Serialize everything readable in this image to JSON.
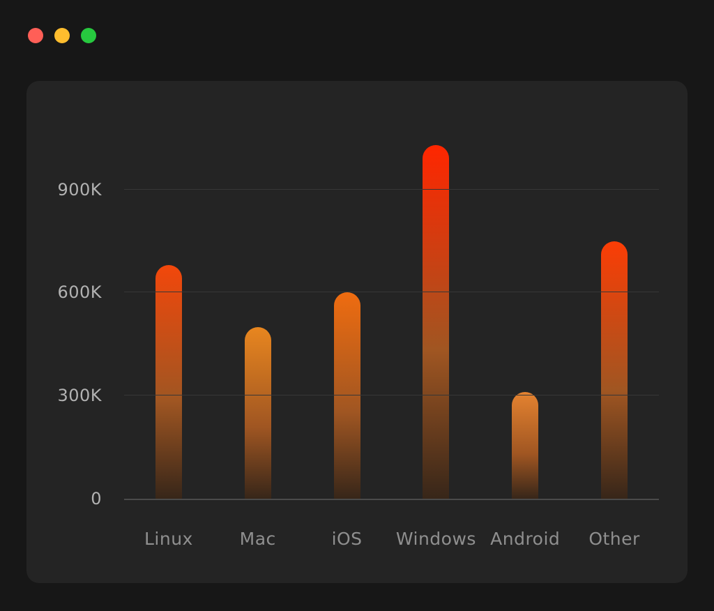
{
  "window": {
    "traffic_lights": [
      {
        "name": "close-button",
        "color": "#ff5f57"
      },
      {
        "name": "minimize-button",
        "color": "#ffbd2e"
      },
      {
        "name": "zoom-button",
        "color": "#27c93f"
      }
    ]
  },
  "chart_data": {
    "type": "bar",
    "title": "",
    "xlabel": "",
    "ylabel": "",
    "categories": [
      "Linux",
      "Mac",
      "iOS",
      "Windows",
      "Android",
      "Other"
    ],
    "values": [
      680000,
      500000,
      600000,
      1030000,
      310000,
      750000
    ],
    "ylim": [
      0,
      1080000
    ],
    "yticks": [
      0,
      300000,
      600000,
      900000
    ],
    "ytick_labels": [
      "0",
      "300K",
      "600K",
      "900K"
    ],
    "grid": true,
    "legend": "none",
    "colors": {
      "bar_top_by_category": [
        "#f2470b",
        "#e8861f",
        "#ef6c10",
        "#ff2600",
        "#e58330",
        "#fb3d05"
      ],
      "bar_mid": "#a05622",
      "bar_bottom": "#372619",
      "gridline": "#373737",
      "axis_line": "#4b4b4b",
      "y_label": "#b2b2b2",
      "x_label": "#8f8f8f",
      "card_background": "#242424",
      "page_background": "#171717"
    }
  }
}
